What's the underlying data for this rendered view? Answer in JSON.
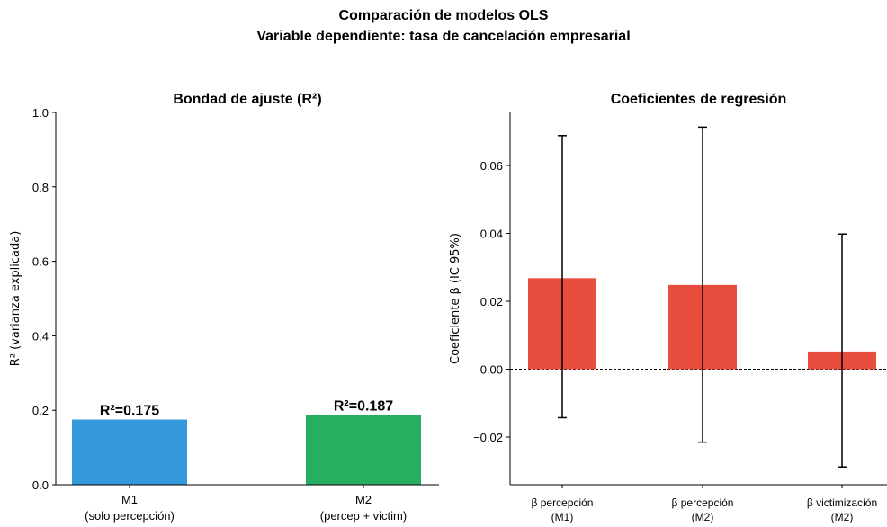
{
  "suptitle": {
    "line1": "Comparación de modelos OLS",
    "line2": "Variable dependiente: tasa de cancelación empresarial"
  },
  "chart_data": [
    {
      "type": "bar",
      "title": "Bondad de ajuste (R²)",
      "ylabel": "R² (varianza explicada)",
      "xlabel": "",
      "ylim": [
        0,
        1
      ],
      "yticks": [
        "0.0",
        "0.2",
        "0.4",
        "0.6",
        "0.8",
        "1.0"
      ],
      "categories": [
        [
          "M1",
          "(solo percepción)"
        ],
        [
          "M2",
          "(percep + victim)"
        ]
      ],
      "values": [
        0.175,
        0.187
      ],
      "data_labels": [
        "R²=0.175",
        "R²=0.187"
      ],
      "colors": [
        "#3498db",
        "#27ae60"
      ],
      "grid": false
    },
    {
      "type": "bar",
      "title": "Coeficientes de regresión",
      "ylabel": "Coeficiente β (IC 95%)",
      "xlabel": "",
      "ylim": [
        -0.036,
        0.075
      ],
      "yticks": [
        "−0.02",
        "0.00",
        "0.02",
        "0.04",
        "0.06"
      ],
      "categories": [
        [
          "β percepción",
          "(M1)"
        ],
        [
          "β percepción",
          "(M2)"
        ],
        [
          "β victimización",
          "(M2)"
        ]
      ],
      "values": [
        0.0268,
        0.0248,
        0.0052
      ],
      "ci_low": [
        -0.0143,
        -0.0215,
        -0.0288
      ],
      "ci_high": [
        0.0688,
        0.0713,
        0.0398
      ],
      "color": "#e74c3c",
      "reference_line": 0,
      "grid": false
    }
  ]
}
